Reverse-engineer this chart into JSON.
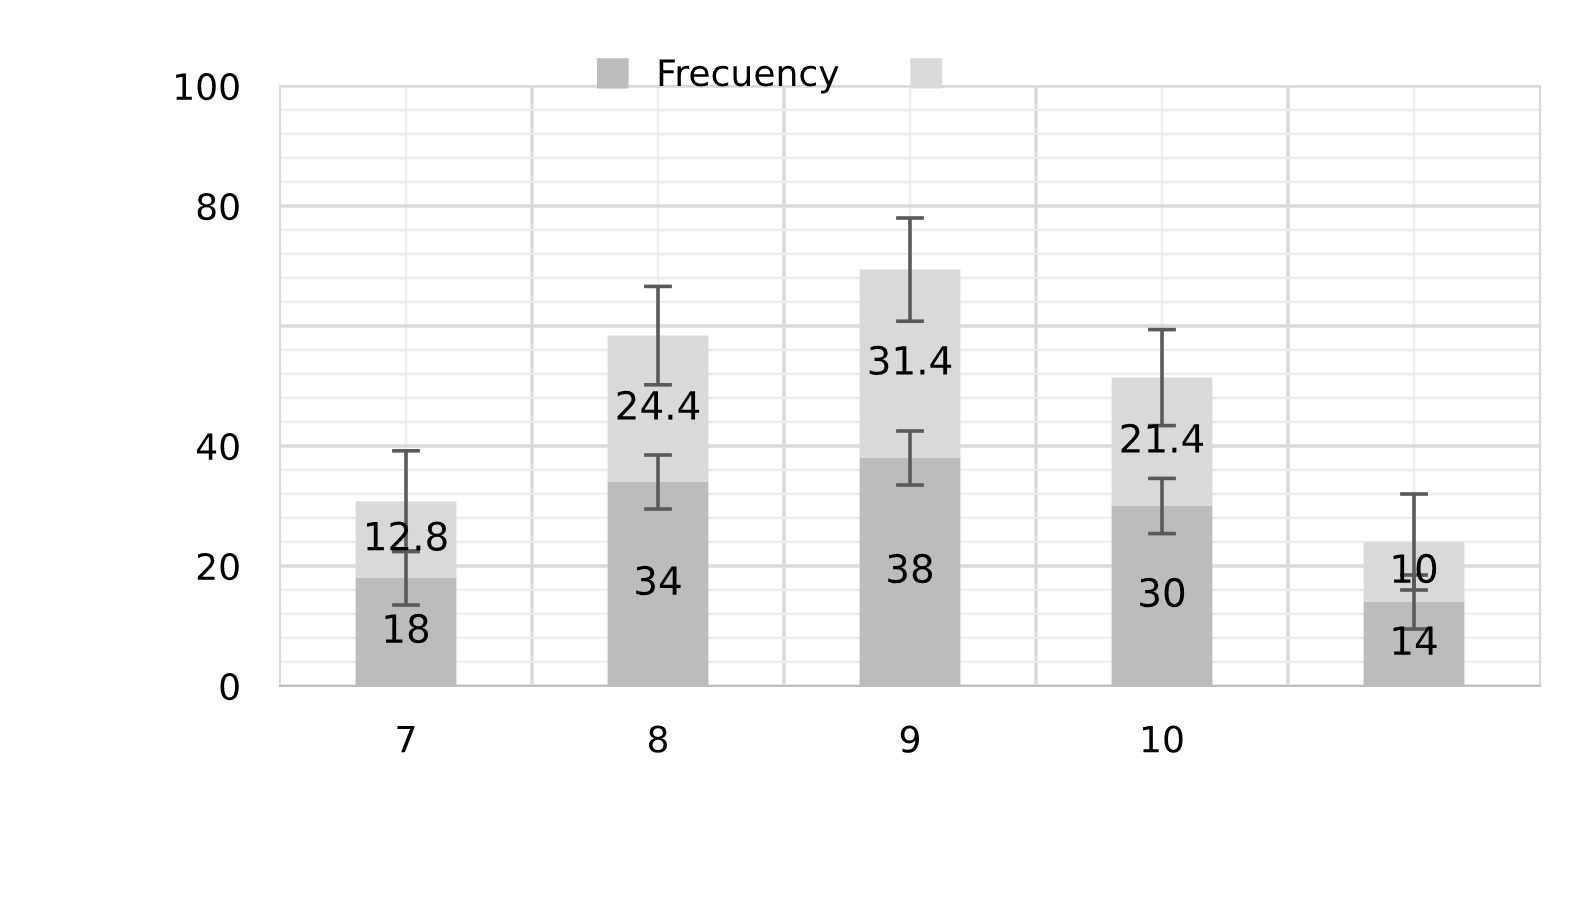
{
  "chart_data": {
    "type": "bar",
    "stacked": true,
    "categories": [
      "7",
      "8",
      "9",
      "10",
      null
    ],
    "series": [
      {
        "name": "Frecuency",
        "color": "#bcbcbc",
        "values": [
          18,
          34,
          38,
          30,
          14
        ],
        "errors": [
          4.5,
          4.5,
          4.5,
          4.6,
          4.5
        ]
      },
      {
        "color": "#d9d9d9",
        "values": [
          12.8,
          24.4,
          31.4,
          21.4,
          10
        ],
        "errors": [
          8.4,
          8.2,
          8.6,
          8,
          8
        ]
      }
    ],
    "ylim": [
      0,
      100
    ],
    "yticks": [
      0,
      20,
      40,
      {
        "value": 60,
        "label": null
      },
      80,
      100
    ],
    "grid": true,
    "legend": "top",
    "data_labels": true
  }
}
